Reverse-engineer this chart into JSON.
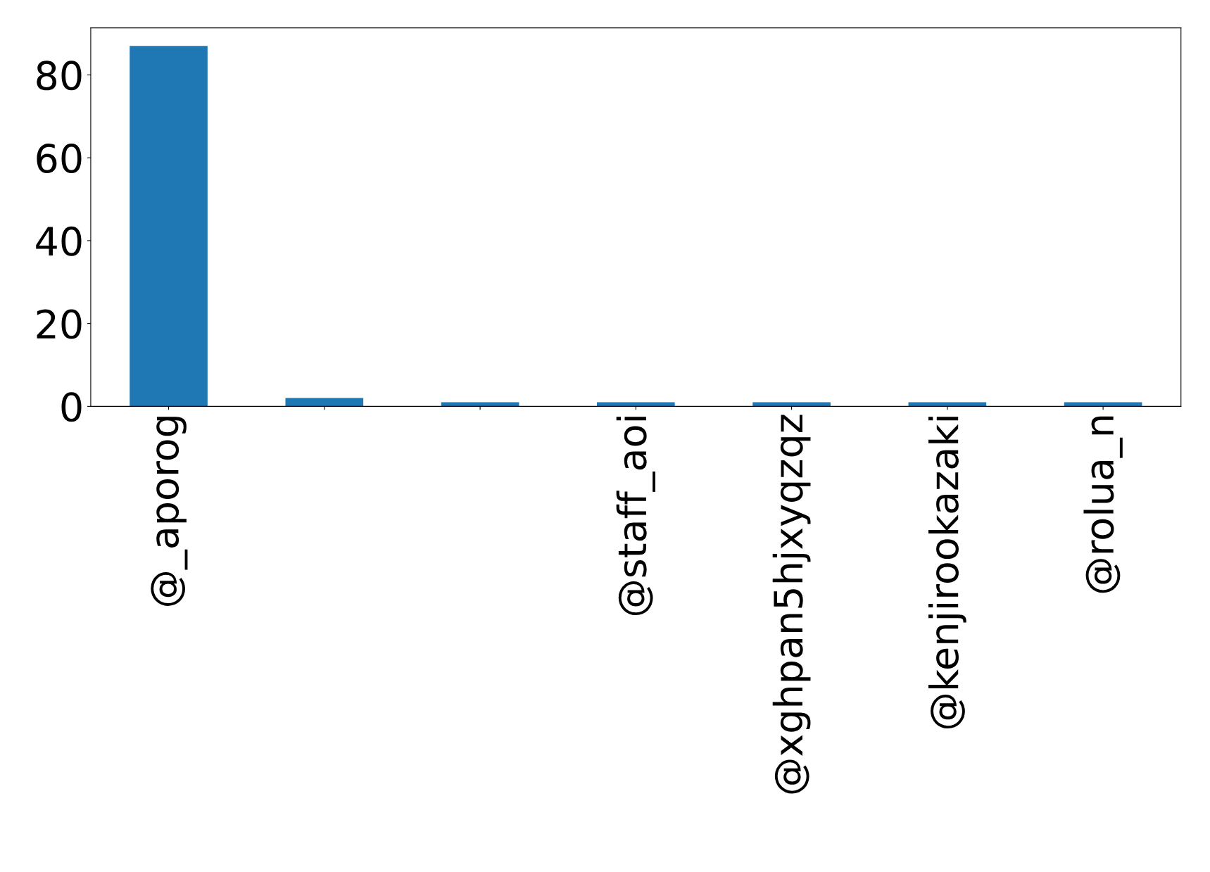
{
  "chart_data": {
    "type": "bar",
    "categories": [
      "@_aporog",
      null,
      null,
      "@staff_aoi",
      "@xghpan5hjxyqzqz",
      "@kenjirookazaki",
      "@rolua_n"
    ],
    "values": [
      87,
      2,
      1,
      1,
      1,
      1,
      1
    ],
    "color": "#1f77b4",
    "ylim": [
      0,
      91.35
    ],
    "yticks": [
      0,
      20,
      40,
      60,
      80
    ],
    "grid": false
  }
}
